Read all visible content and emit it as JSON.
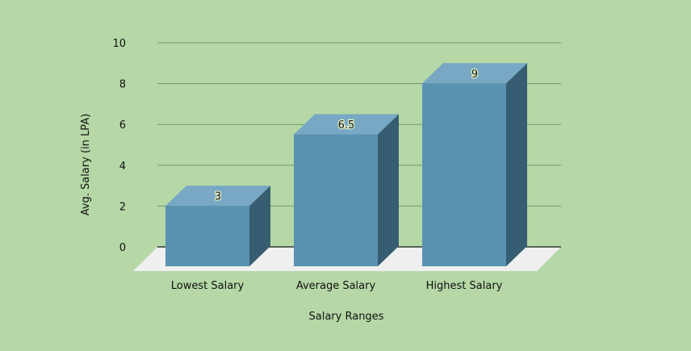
{
  "chart_data": {
    "type": "bar",
    "categories": [
      "Lowest Salary",
      "Average Salary",
      "Highest Salary"
    ],
    "values": [
      3,
      6.5,
      9
    ],
    "data_labels": [
      "3",
      "6.5",
      "9"
    ],
    "xlabel": "Salary Ranges",
    "ylabel": "Avg. Salary (in LPA)",
    "ylim": [
      0,
      10
    ],
    "yticks": [
      0,
      2,
      4,
      6,
      8,
      10
    ],
    "ytick_labels": [
      "0",
      "2",
      "4",
      "6",
      "8",
      "10"
    ],
    "grid": true,
    "style": "3d-column",
    "colors": {
      "background": "#b5d8a6",
      "bar_front": "#5a92b2",
      "bar_top": "#78a8c4",
      "bar_side": "#365d72",
      "floor": "#efefef",
      "gridline": "#6e9a6e"
    }
  }
}
